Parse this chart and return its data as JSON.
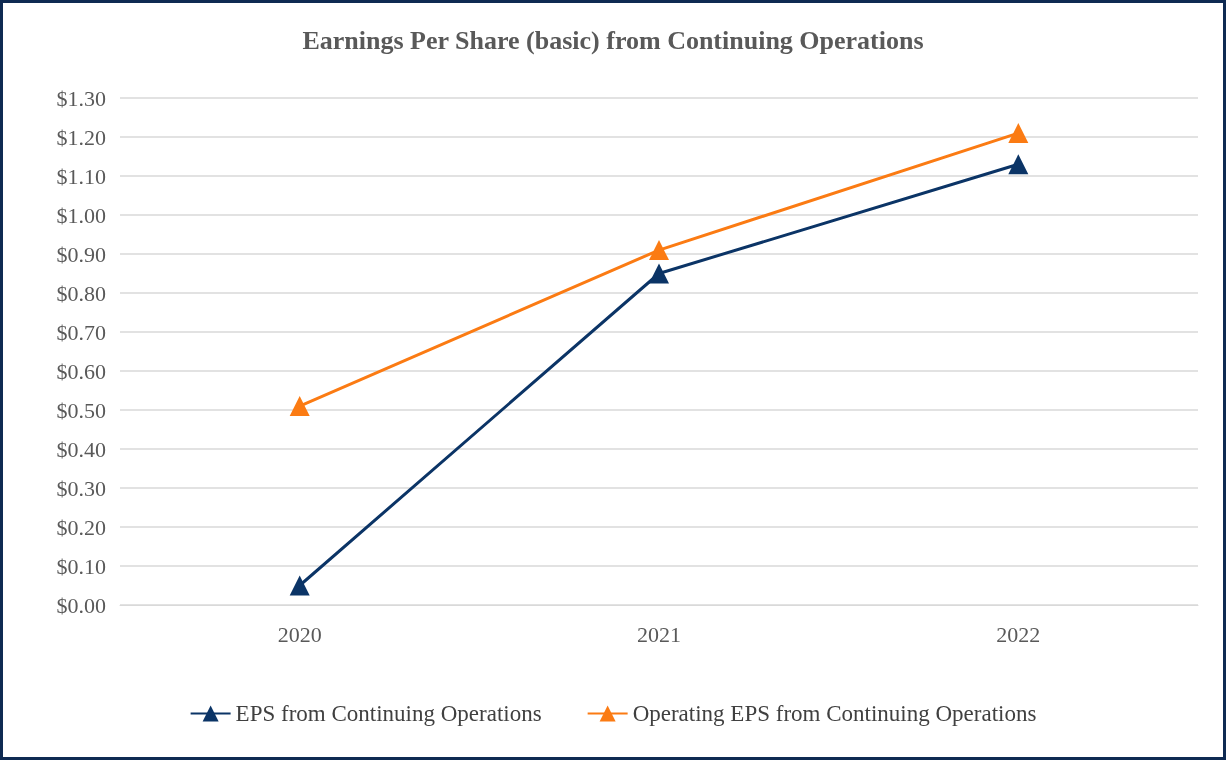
{
  "chart_data": {
    "type": "line",
    "title": "Earnings Per Share (basic) from Continuing Operations",
    "categories": [
      "2020",
      "2021",
      "2022"
    ],
    "series": [
      {
        "name": "EPS from Continuing Operations",
        "color": "#0b3466",
        "values": [
          0.05,
          0.85,
          1.13
        ]
      },
      {
        "name": "Operating EPS from Continuing Operations",
        "color": "#fb7b13",
        "values": [
          0.51,
          0.91,
          1.21
        ]
      }
    ],
    "ylim": [
      0,
      1.3
    ],
    "yticks": [
      {
        "value": 0,
        "label": "$0.00"
      },
      {
        "value": 0.1,
        "label": "$0.10"
      },
      {
        "value": 0.2,
        "label": "$0.20"
      },
      {
        "value": 0.3,
        "label": "$0.30"
      },
      {
        "value": 0.4,
        "label": "$0.40"
      },
      {
        "value": 0.5,
        "label": "$0.50"
      },
      {
        "value": 0.6,
        "label": "$0.60"
      },
      {
        "value": 0.7,
        "label": "$0.70"
      },
      {
        "value": 0.8,
        "label": "$0.80"
      },
      {
        "value": 0.9,
        "label": "$0.90"
      },
      {
        "value": 1.0,
        "label": "$1.00"
      },
      {
        "value": 1.1,
        "label": "$1.10"
      },
      {
        "value": 1.2,
        "label": "$1.20"
      },
      {
        "value": 1.3,
        "label": "$1.30"
      }
    ],
    "grid": "y",
    "legend": "bottom",
    "marker": "triangle",
    "line_style": "solid"
  }
}
